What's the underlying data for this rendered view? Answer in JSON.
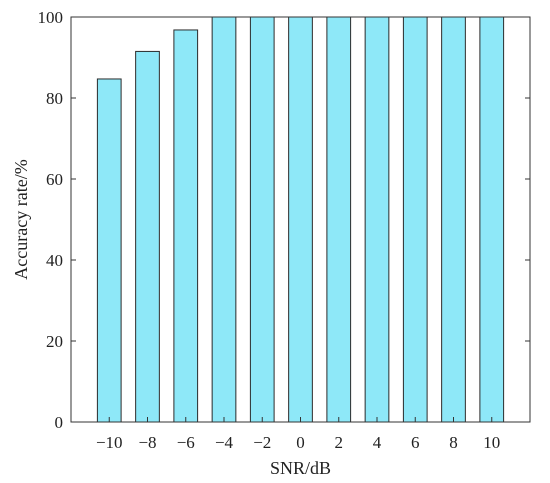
{
  "chart_data": {
    "type": "bar",
    "categories": [
      "−10",
      "−8",
      "−6",
      "−4",
      "−2",
      "0",
      "2",
      "4",
      "6",
      "8",
      "10"
    ],
    "series": [
      {
        "values": [
          84.7,
          91.5,
          96.8,
          100,
          100,
          100,
          100,
          100,
          100,
          100,
          100
        ]
      }
    ],
    "xlabel": "SNR/dB",
    "ylabel": "Accuracy rate/%",
    "ylim": [
      0,
      100
    ],
    "yticks": [
      0,
      20,
      40,
      60,
      80,
      100
    ],
    "grid": false,
    "colors": {
      "bar_fill": "#8EE8F8",
      "bar_stroke": "#2b2b2b",
      "axis": "#333333"
    }
  }
}
